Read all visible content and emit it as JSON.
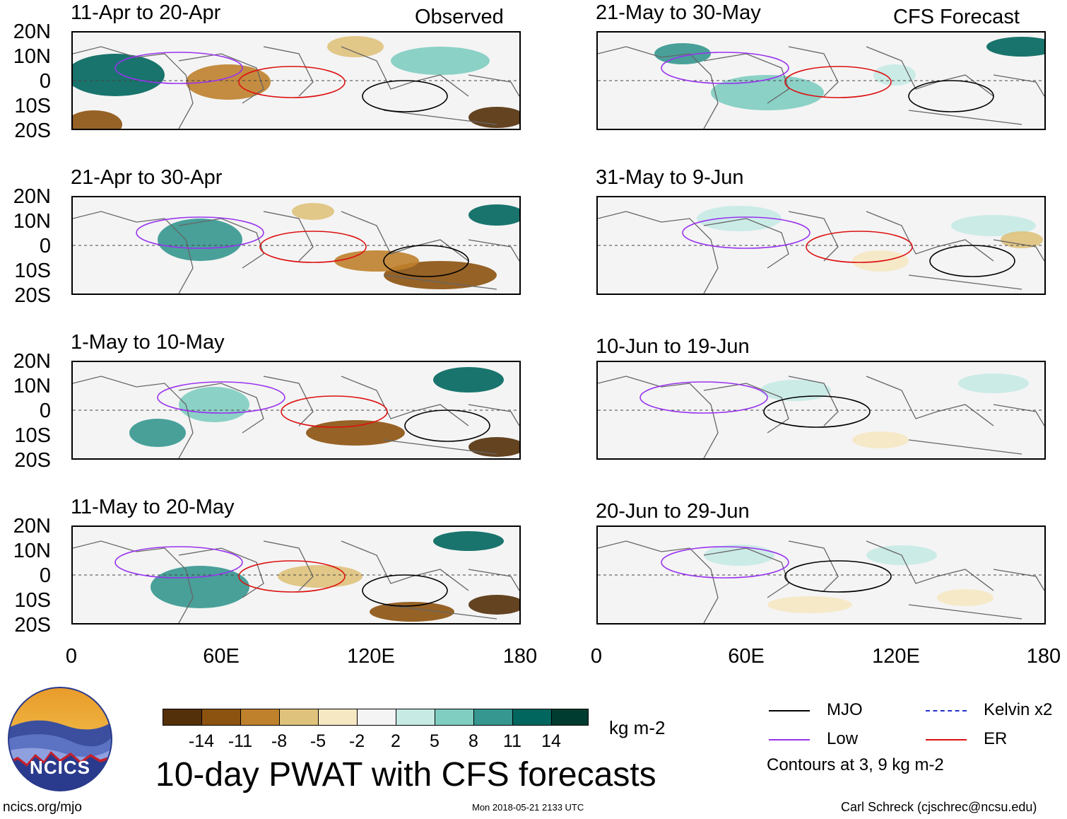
{
  "columns": {
    "left_label": "Observed",
    "right_label": "CFS Forecast"
  },
  "panels": {
    "left": [
      {
        "title": "11-Apr to 20-Apr"
      },
      {
        "title": "21-Apr to 30-Apr"
      },
      {
        "title": "1-May to 10-May"
      },
      {
        "title": "11-May to 20-May"
      }
    ],
    "right": [
      {
        "title": "21-May to 30-May"
      },
      {
        "title": "31-May to 9-Jun"
      },
      {
        "title": "10-Jun to 19-Jun"
      },
      {
        "title": "20-Jun to 29-Jun"
      }
    ]
  },
  "axes": {
    "y_ticks": [
      "20N",
      "10N",
      "0",
      "10S",
      "20S"
    ],
    "x_ticks": [
      "0",
      "60E",
      "120E",
      "180"
    ]
  },
  "colorbar": {
    "labels": [
      "-14",
      "-11",
      "-8",
      "-5",
      "-2",
      "2",
      "5",
      "8",
      "11",
      "14"
    ],
    "colors": [
      "#54300a",
      "#8c520f",
      "#bf812c",
      "#dfc27c",
      "#f6e8c3",
      "#f4f4f4",
      "#c7eae5",
      "#80cdc1",
      "#35978f",
      "#01665e",
      "#003c30"
    ],
    "unit": "kg m-2"
  },
  "main_title": "10-day PWAT with CFS forecasts",
  "legend": {
    "items": [
      {
        "label": "MJO",
        "color": "#000000"
      },
      {
        "label": "Kelvin x2",
        "color": "#2233cc"
      },
      {
        "label": "Low",
        "color": "#9933ee"
      },
      {
        "label": "ER",
        "color": "#dd1111"
      }
    ],
    "note": "Contours at 3, 9 kg m-2"
  },
  "logo": {
    "text": "NCICS"
  },
  "footer": {
    "url": "ncics.org/mjo",
    "timestamp": "Mon 2018-05-21 2133 UTC",
    "author": "Carl Schreck (cjschrec@ncsu.edu)"
  }
}
